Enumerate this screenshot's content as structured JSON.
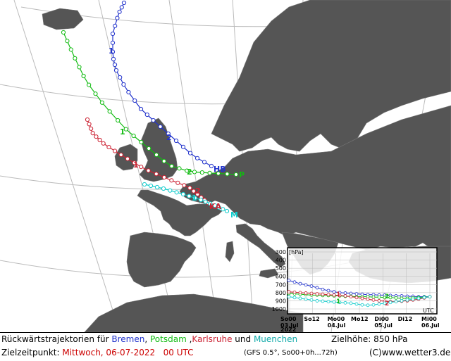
{
  "colors": {
    "sea": "#ffffff",
    "land": "#555555",
    "grid": "#bbbbbb",
    "bremen": "#2233cc",
    "potsdam": "#11bb11",
    "karlsruhe": "#cc2233",
    "muenchen": "#11cccc"
  },
  "map": {
    "stations": {
      "bremen": "HB",
      "potsdam": "P",
      "karlsruhe": "KA",
      "muenchen": "M"
    },
    "day_markers": [
      "1",
      "2"
    ]
  },
  "inset": {
    "unit_label": "[hPa]",
    "corner_label": "UTC",
    "y_ticks": [
      "300",
      "400",
      "500",
      "600",
      "700",
      "800",
      "900",
      "1000"
    ],
    "x_ticks": [
      {
        "time": "So00",
        "date": "03.Jul",
        "year": "2022"
      },
      {
        "time": "So12",
        "date": "",
        "year": ""
      },
      {
        "time": "Mo00",
        "date": "04.Jul",
        "year": ""
      },
      {
        "time": "Mo12",
        "date": "",
        "year": ""
      },
      {
        "time": "Di00",
        "date": "05.Jul",
        "year": ""
      },
      {
        "time": "Di12",
        "date": "",
        "year": ""
      },
      {
        "time": "Mi00",
        "date": "06.Jul",
        "year": ""
      }
    ],
    "series_pressure_hpa": {
      "bremen": [
        650,
        670,
        690,
        705,
        720,
        740,
        760,
        775,
        790,
        800,
        805,
        810,
        815,
        820,
        825,
        825,
        830,
        830,
        835,
        840,
        840,
        845,
        845,
        850,
        850,
        850
      ],
      "potsdam": [
        810,
        815,
        820,
        825,
        830,
        830,
        835,
        835,
        840,
        840,
        845,
        845,
        850,
        850,
        850,
        855,
        855,
        860,
        860,
        865,
        870,
        870,
        865,
        860,
        855,
        850
      ],
      "karlsruhe": [
        790,
        795,
        800,
        805,
        810,
        815,
        820,
        825,
        830,
        835,
        840,
        850,
        860,
        870,
        880,
        890,
        900,
        905,
        910,
        910,
        905,
        900,
        890,
        880,
        865,
        850
      ],
      "muenchen": [
        850,
        860,
        870,
        880,
        890,
        900,
        905,
        910,
        915,
        920,
        925,
        930,
        940,
        950,
        955,
        950,
        940,
        930,
        920,
        910,
        900,
        890,
        880,
        870,
        860,
        850
      ]
    }
  },
  "footer": {
    "line1": {
      "prefix": "Rückwärtstrajektorien für ",
      "bremen": "Bremen",
      "sep1": ", ",
      "potsdam": "Potsdam",
      "sep2": " ,",
      "karlsruhe": "Karlsruhe",
      "sep3": " und ",
      "muenchen": "Muenchen",
      "target_height": "Zielhöhe: 850 hPa"
    },
    "line2": {
      "label": "Zielzeitpunkt: ",
      "value": "Mittwoch, 06-07-2022   00 UTC",
      "model": "(GFS 0.5°, So00+0h...72h)",
      "credit": "(C)www.wetter3.de"
    }
  }
}
